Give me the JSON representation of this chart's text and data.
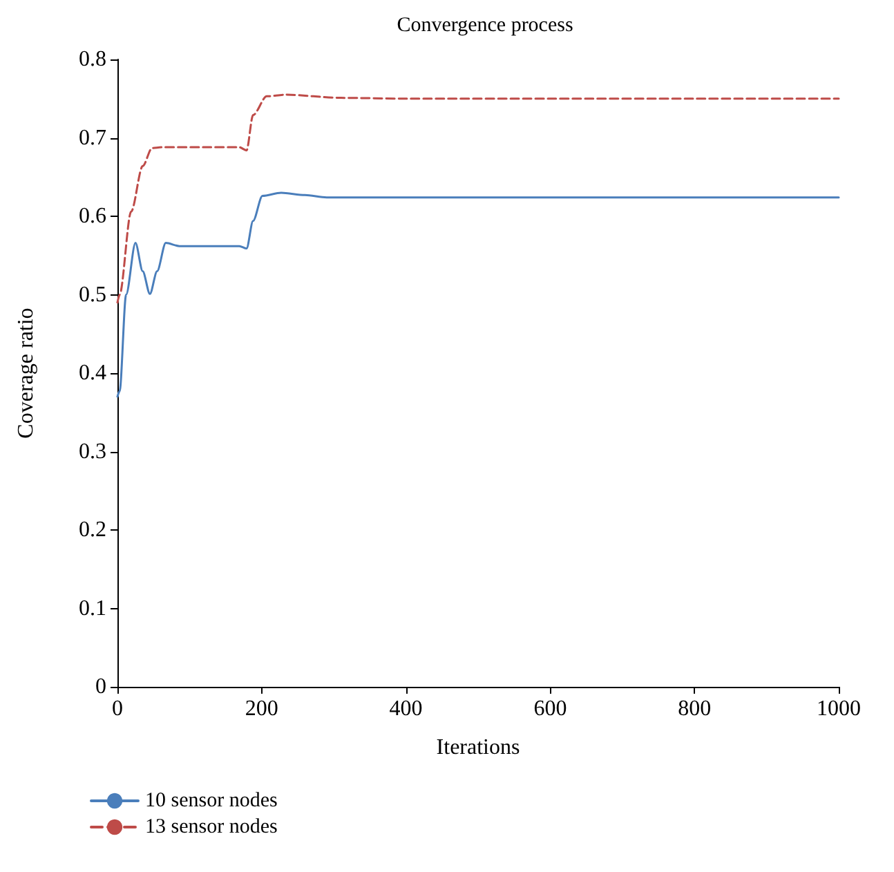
{
  "chart_data": {
    "type": "line",
    "title": "Convergence process",
    "xlabel": "Iterations",
    "ylabel": "Coverage ratio",
    "xlim": [
      0,
      1000
    ],
    "xticks": [
      0,
      200,
      400,
      600,
      800,
      {
        "value": 1000,
        "label": "1000"
      }
    ],
    "ylim": [
      0,
      0.8
    ],
    "yticks": [
      0,
      0.1,
      0.2,
      0.3,
      0.4,
      0.5,
      0.6,
      0.7,
      0.8
    ],
    "grid": false,
    "legend": "bottom left",
    "marker": "none",
    "series": [
      {
        "name": "10 sensor nodes",
        "color": "#4a7ebb",
        "line_style": "solid",
        "x": [
          0,
          3,
          12,
          25,
          35,
          45,
          55,
          67,
          86,
          120,
          169,
          179,
          188,
          201,
          227,
          260,
          290,
          400,
          600,
          800,
          1000
        ],
        "values": [
          0.37,
          0.377,
          0.5,
          0.566,
          0.53,
          0.501,
          0.53,
          0.566,
          0.562,
          0.562,
          0.562,
          0.559,
          0.594,
          0.626,
          0.63,
          0.627,
          0.624,
          0.624,
          0.624,
          0.624,
          0.624
        ]
      },
      {
        "name": "13 sensor nodes",
        "color": "#be4b48",
        "line_style": "dashed",
        "x": [
          0,
          3,
          19,
          35,
          48,
          61,
          120,
          169,
          179,
          188,
          207,
          233,
          310,
          400,
          600,
          800,
          1000
        ],
        "values": [
          0.49,
          0.5,
          0.606,
          0.664,
          0.687,
          0.688,
          0.688,
          0.688,
          0.684,
          0.729,
          0.753,
          0.755,
          0.751,
          0.75,
          0.75,
          0.75,
          0.75
        ]
      }
    ]
  }
}
